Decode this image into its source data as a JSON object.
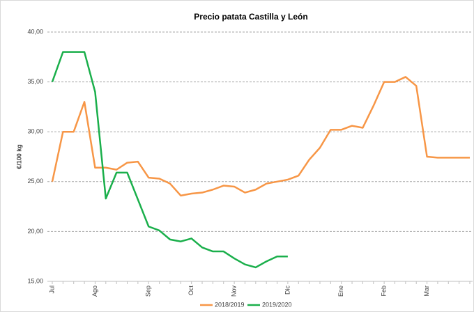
{
  "chart_data": {
    "type": "line",
    "title": "Precio patata Castilla y León",
    "y_label": "€/100 kg",
    "categories": [
      "Jul",
      null,
      null,
      null,
      "Ago",
      null,
      null,
      null,
      null,
      "Sep",
      null,
      null,
      null,
      "Oct",
      null,
      null,
      null,
      "Nov",
      null,
      null,
      null,
      null,
      "Dic",
      null,
      null,
      null,
      null,
      "Ene",
      null,
      null,
      null,
      "Feb",
      null,
      null,
      null,
      "Mar",
      null,
      null,
      null,
      null
    ],
    "series": [
      {
        "name": "2018/2019",
        "color": "#f79646",
        "values": [
          25.0,
          30.0,
          30.0,
          33.0,
          26.4,
          26.4,
          26.2,
          26.9,
          27.0,
          25.4,
          25.3,
          24.8,
          23.6,
          23.8,
          23.9,
          24.2,
          24.6,
          24.5,
          23.9,
          24.2,
          24.8,
          25.0,
          25.2,
          25.6,
          27.2,
          28.4,
          30.2,
          30.2,
          30.6,
          30.4,
          32.6,
          35.0,
          35.0,
          35.5,
          34.6,
          27.5,
          27.4,
          27.4,
          27.4,
          27.4
        ]
      },
      {
        "name": "2019/2020",
        "color": "#1aaf4b",
        "values": [
          35.0,
          38.0,
          38.0,
          38.0,
          34.0,
          23.3,
          25.9,
          25.9,
          23.2,
          20.5,
          20.1,
          19.2,
          19.0,
          19.3,
          18.4,
          18.0,
          18.0,
          17.3,
          16.7,
          16.4,
          17.0,
          17.5,
          17.5,
          null,
          null,
          null,
          null,
          null,
          null,
          null,
          null,
          null,
          null,
          null,
          null,
          null,
          null,
          null,
          null,
          null
        ]
      }
    ],
    "ylim": [
      15,
      40
    ],
    "yticks": [
      {
        "value": 15,
        "label": "15,00"
      },
      {
        "value": 20,
        "label": "20,00"
      },
      {
        "value": 25,
        "label": "25,00"
      },
      {
        "value": 30,
        "label": "30,00"
      },
      {
        "value": 35,
        "label": "35,00"
      },
      {
        "value": 40,
        "label": "40,00"
      }
    ],
    "grid": true,
    "legend": "bottom"
  }
}
